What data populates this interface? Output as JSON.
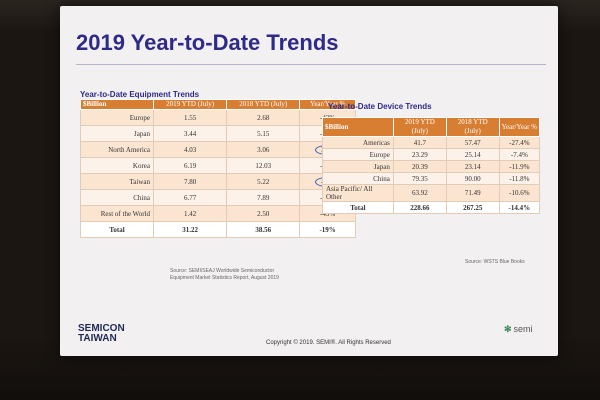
{
  "slide": {
    "title": "2019 Year-to-Date Trends",
    "copyright": "Copyright © 2019. SEMI®. All Rights Reserved",
    "left_logo": [
      "SEMICON",
      "TAIWAN"
    ],
    "right_logo": "semi",
    "right_logo_icon": "semi-leaf-icon"
  },
  "equipment": {
    "subtitle": "Year-to-Date Equipment Trends",
    "headers": [
      "$Billion",
      "2019 YTD (July)",
      "2018 YTD (July)",
      "Year/Year %"
    ],
    "rows": [
      {
        "region": "Europe",
        "ytd2019": "1.55",
        "ytd2018": "2.68",
        "yoy": "-42%"
      },
      {
        "region": "Japan",
        "ytd2019": "3.44",
        "ytd2018": "5.15",
        "yoy": "-33%"
      },
      {
        "region": "North America",
        "ytd2019": "4.03",
        "ytd2018": "3.06",
        "yoy": "32%"
      },
      {
        "region": "Korea",
        "ytd2019": "6.19",
        "ytd2018": "12.03",
        "yoy": "-48%"
      },
      {
        "region": "Taiwan",
        "ytd2019": "7.80",
        "ytd2018": "5.22",
        "yoy": "49%"
      },
      {
        "region": "China",
        "ytd2019": "6.77",
        "ytd2018": "7.89",
        "yoy": "-14%"
      },
      {
        "region": "Rest of the World",
        "ytd2019": "1.42",
        "ytd2018": "2.50",
        "yoy": "-43%"
      }
    ],
    "total": {
      "label": "Total",
      "ytd2019": "31.22",
      "ytd2018": "38.56",
      "yoy": "-19%"
    },
    "source": "Source: SEMI/SEAJ Worldwide Semiconductor Equipment Market Statistics Report, August 2019"
  },
  "device": {
    "subtitle": "Year-to-Date Device Trends",
    "headers": [
      "$Billion",
      "2019 YTD (July)",
      "2018 YTD (July)",
      "Year/Year %"
    ],
    "rows": [
      {
        "region": "Americas",
        "ytd2019": "41.7",
        "ytd2018": "57.47",
        "yoy": "-27.4%"
      },
      {
        "region": "Europe",
        "ytd2019": "23.29",
        "ytd2018": "25.14",
        "yoy": "-7.4%"
      },
      {
        "region": "Japan",
        "ytd2019": "20.39",
        "ytd2018": "23.14",
        "yoy": "-11.9%"
      },
      {
        "region": "China",
        "ytd2019": "79.35",
        "ytd2018": "90.00",
        "yoy": "-11.8%"
      },
      {
        "region": "Asia Pacific/ All Other",
        "ytd2019": "63.92",
        "ytd2018": "71.49",
        "yoy": "-10.6%"
      }
    ],
    "total": {
      "label": "Total",
      "ytd2019": "228.66",
      "ytd2018": "267.25",
      "yoy": "-14.4%"
    },
    "source": "Source: WSTS Blue Books"
  }
}
